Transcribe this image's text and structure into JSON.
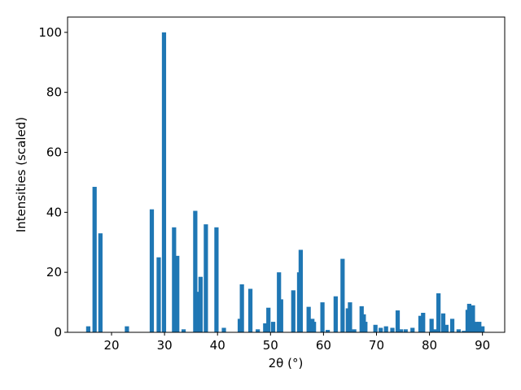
{
  "chart_data": {
    "type": "bar",
    "x_label": "2θ (°)",
    "y_label": "Intensities (scaled)",
    "color": "#1f77b4",
    "x": [
      15.6,
      16.8,
      17.9,
      22.9,
      27.6,
      28.9,
      29.9,
      31.8,
      32.4,
      33.6,
      35.8,
      36.3,
      36.8,
      37.8,
      39.8,
      41.2,
      44.2,
      44.6,
      46.2,
      47.6,
      49.0,
      49.6,
      50.5,
      51.6,
      52.0,
      54.3,
      55.4,
      55.7,
      57.2,
      57.9,
      58.2,
      59.8,
      60.8,
      62.3,
      63.6,
      64.6,
      65.0,
      65.8,
      67.2,
      67.6,
      67.9,
      69.8,
      70.8,
      71.8,
      73.0,
      74.0,
      74.6,
      75.5,
      76.8,
      78.3,
      78.8,
      80.4,
      81.0,
      81.7,
      82.6,
      83.2,
      84.3,
      85.5,
      86.5,
      87.2,
      87.5,
      88.2,
      88.8,
      89.4,
      90.0
    ],
    "values": [
      2,
      48.5,
      33,
      2,
      41,
      25,
      100,
      35,
      25.5,
      1,
      40.5,
      13.5,
      18.5,
      36,
      35,
      1.5,
      4.5,
      16,
      14.5,
      1,
      3,
      8.2,
      3.5,
      20,
      11,
      14,
      20,
      27.5,
      8.5,
      4.5,
      3.5,
      10,
      0.8,
      12,
      24.5,
      8,
      10,
      1,
      8.7,
      6,
      3.5,
      2.5,
      1.5,
      2,
      1.5,
      7.3,
      1,
      1,
      1.5,
      5.5,
      6.5,
      4.5,
      1,
      13,
      6.3,
      2.5,
      4.5,
      1,
      0.5,
      7.5,
      9.5,
      9,
      3.5,
      3.5,
      2
    ],
    "xlim": [
      11.7,
      94.2
    ],
    "xticks": [
      20,
      30,
      40,
      50,
      60,
      70,
      80,
      90
    ],
    "ylim": [
      0,
      105.1
    ],
    "yticks": [
      0,
      20,
      40,
      60,
      80,
      100
    ]
  }
}
